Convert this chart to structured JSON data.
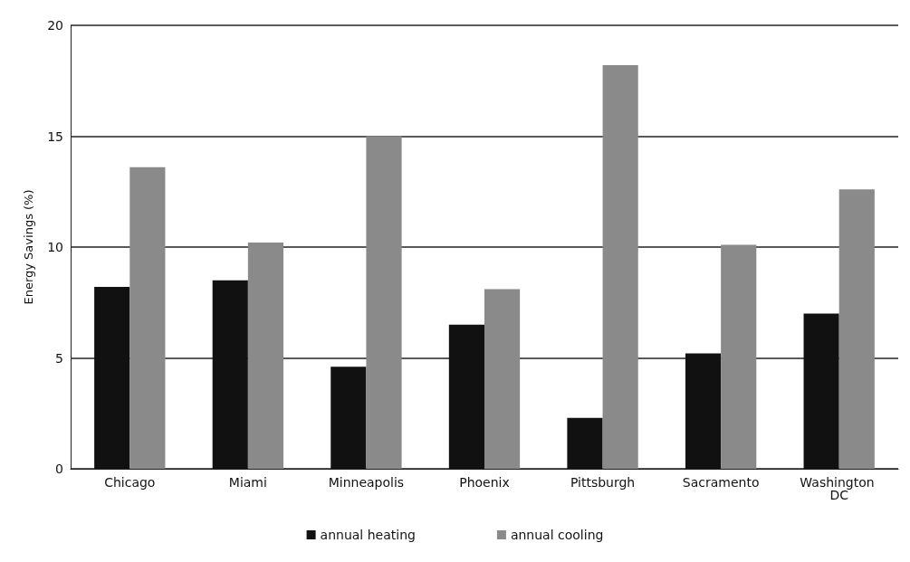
{
  "chart_data": {
    "type": "bar",
    "ylabel": "Energy Savings (%)",
    "categories": [
      "Chicago",
      "Miami",
      "Minneapolis",
      "Phoenix",
      "Pittsburgh",
      "Sacramento",
      "Washington DC"
    ],
    "series": [
      {
        "name": "annual heating",
        "color": "#111111",
        "values": [
          8.2,
          8.5,
          4.6,
          6.5,
          2.3,
          5.2,
          7.0
        ]
      },
      {
        "name": "annual cooling",
        "color": "#8a8a8a",
        "values": [
          13.6,
          10.2,
          15.0,
          8.1,
          18.2,
          10.1,
          12.6
        ]
      }
    ],
    "ylim": [
      0,
      20
    ],
    "yticks": [
      0,
      5,
      10,
      15,
      20
    ],
    "grid": "y",
    "legend": "bottom"
  }
}
